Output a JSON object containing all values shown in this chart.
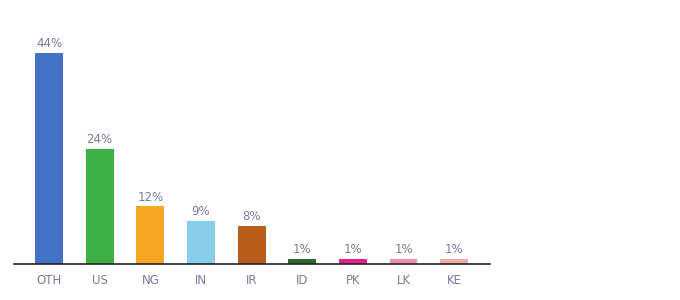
{
  "categories": [
    "OTH",
    "US",
    "NG",
    "IN",
    "IR",
    "ID",
    "PK",
    "LK",
    "KE"
  ],
  "values": [
    44,
    24,
    12,
    9,
    8,
    1,
    1,
    1,
    1
  ],
  "labels": [
    "44%",
    "24%",
    "12%",
    "9%",
    "8%",
    "1%",
    "1%",
    "1%",
    "1%"
  ],
  "colors": [
    "#4472c4",
    "#3cb043",
    "#f5a623",
    "#87ceeb",
    "#b85c1a",
    "#2d6a2d",
    "#e91e8c",
    "#f48fb1",
    "#f4a9a8"
  ],
  "ylim": [
    0,
    50
  ],
  "bar_width": 0.55,
  "label_fontsize": 8.5,
  "tick_fontsize": 8.5,
  "background_color": "#ffffff",
  "label_color": "#7a7a9a",
  "spine_color": "#222222"
}
